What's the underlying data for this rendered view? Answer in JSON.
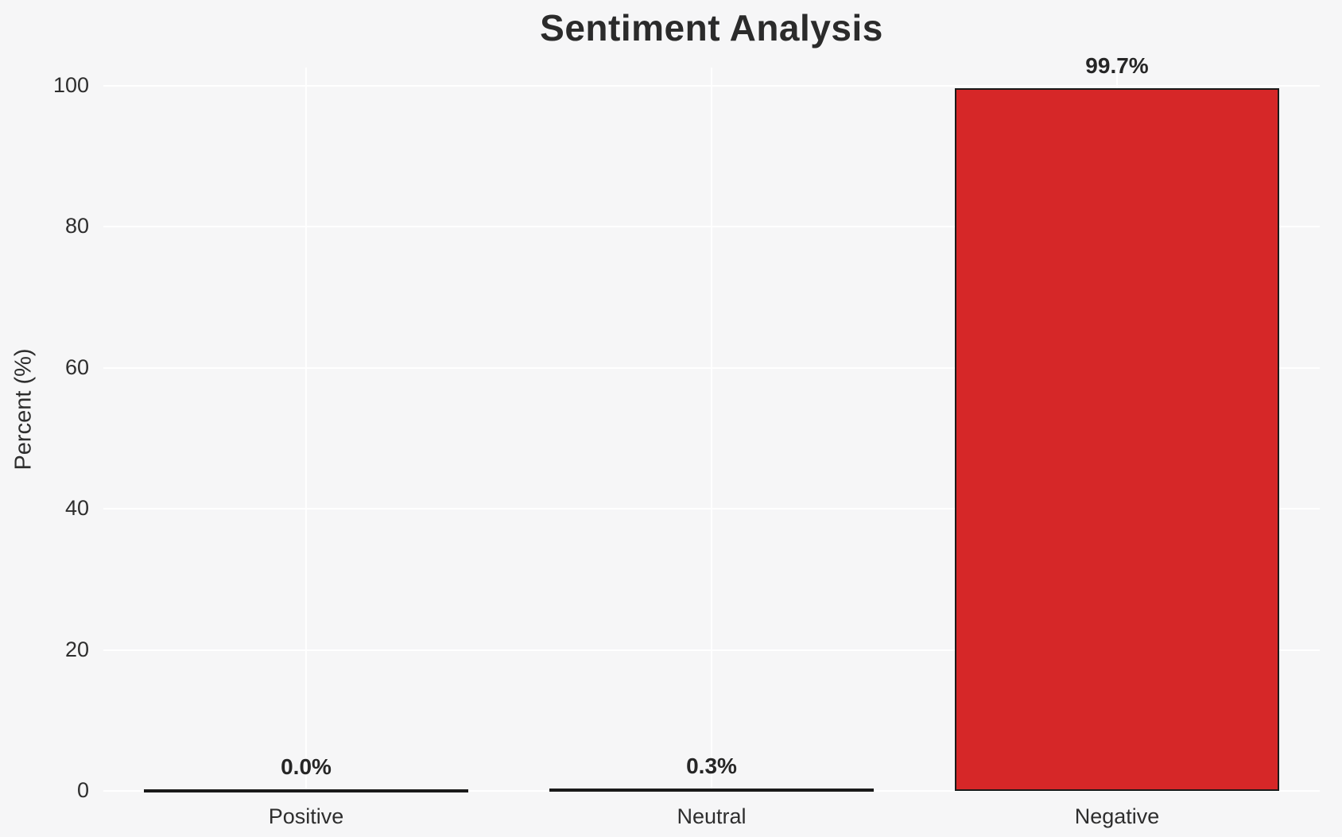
{
  "chart_data": {
    "type": "bar",
    "title": "Sentiment Analysis",
    "xlabel": "",
    "ylabel": "Percent (%)",
    "categories": [
      "Positive",
      "Neutral",
      "Negative"
    ],
    "values": [
      0.0,
      0.3,
      99.7
    ],
    "value_labels": [
      "0.0%",
      "0.3%",
      "99.7%"
    ],
    "yticks": [
      0,
      20,
      40,
      60,
      80,
      100
    ],
    "ylim": [
      0,
      102.5
    ],
    "grid": "on",
    "legend_position": "none",
    "bar_fill_colors": [
      null,
      null,
      "#d62728"
    ],
    "bar_edge_color": "#1a1a1a"
  },
  "colors": {
    "background": "#f6f6f7",
    "gridline": "#ffffff",
    "title_text": "#2b2b2b",
    "axis_text": "#2e2e2e",
    "value_label_text": "#262626",
    "negative_bar": "#d62728",
    "bar_edge": "#1a1a1a"
  }
}
